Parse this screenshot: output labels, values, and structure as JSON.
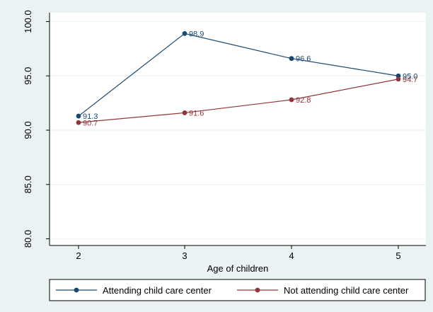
{
  "chart_data": {
    "type": "line",
    "title": "",
    "xlabel": "Age of children",
    "ylabel": "",
    "x": [
      2,
      3,
      4,
      5
    ],
    "xticks": [
      "2",
      "3",
      "4",
      "5"
    ],
    "ylim": [
      80.0,
      100.0
    ],
    "yticks": [
      "80.0",
      "85.0",
      "90.0",
      "95.0",
      "100.0"
    ],
    "grid": true,
    "legend_position": "bottom",
    "series": [
      {
        "name": "Attending child care center",
        "values": [
          91.3,
          98.9,
          96.6,
          95.0
        ],
        "labels": [
          "91.3",
          "98.9",
          "96.6",
          "95.0"
        ],
        "color": "#1a476f"
      },
      {
        "name": "Not attending child care center",
        "values": [
          90.7,
          91.6,
          92.8,
          94.7
        ],
        "labels": [
          "90.7",
          "91.6",
          "92.8",
          "94.7"
        ],
        "color": "#90353b"
      }
    ],
    "colors": {
      "background": "#eaf2f3",
      "plot_background": "#ffffff",
      "grid": "#eaf2f3"
    }
  }
}
